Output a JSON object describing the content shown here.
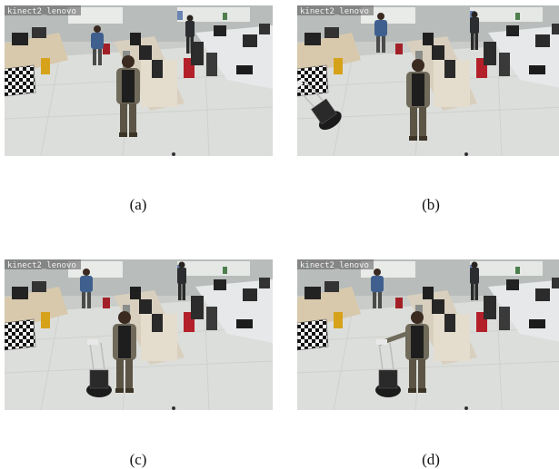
{
  "panels": [
    {
      "id": "a",
      "overlay": "kinect2_lenovo",
      "caption": "(a)"
    },
    {
      "id": "b",
      "overlay": "kinect2_lenovo",
      "caption": "(b)"
    },
    {
      "id": "c",
      "overlay": "kinect2_lenovo",
      "caption": "(c)"
    },
    {
      "id": "d",
      "overlay": "kinect2_lenovo",
      "caption": "(d)"
    }
  ]
}
